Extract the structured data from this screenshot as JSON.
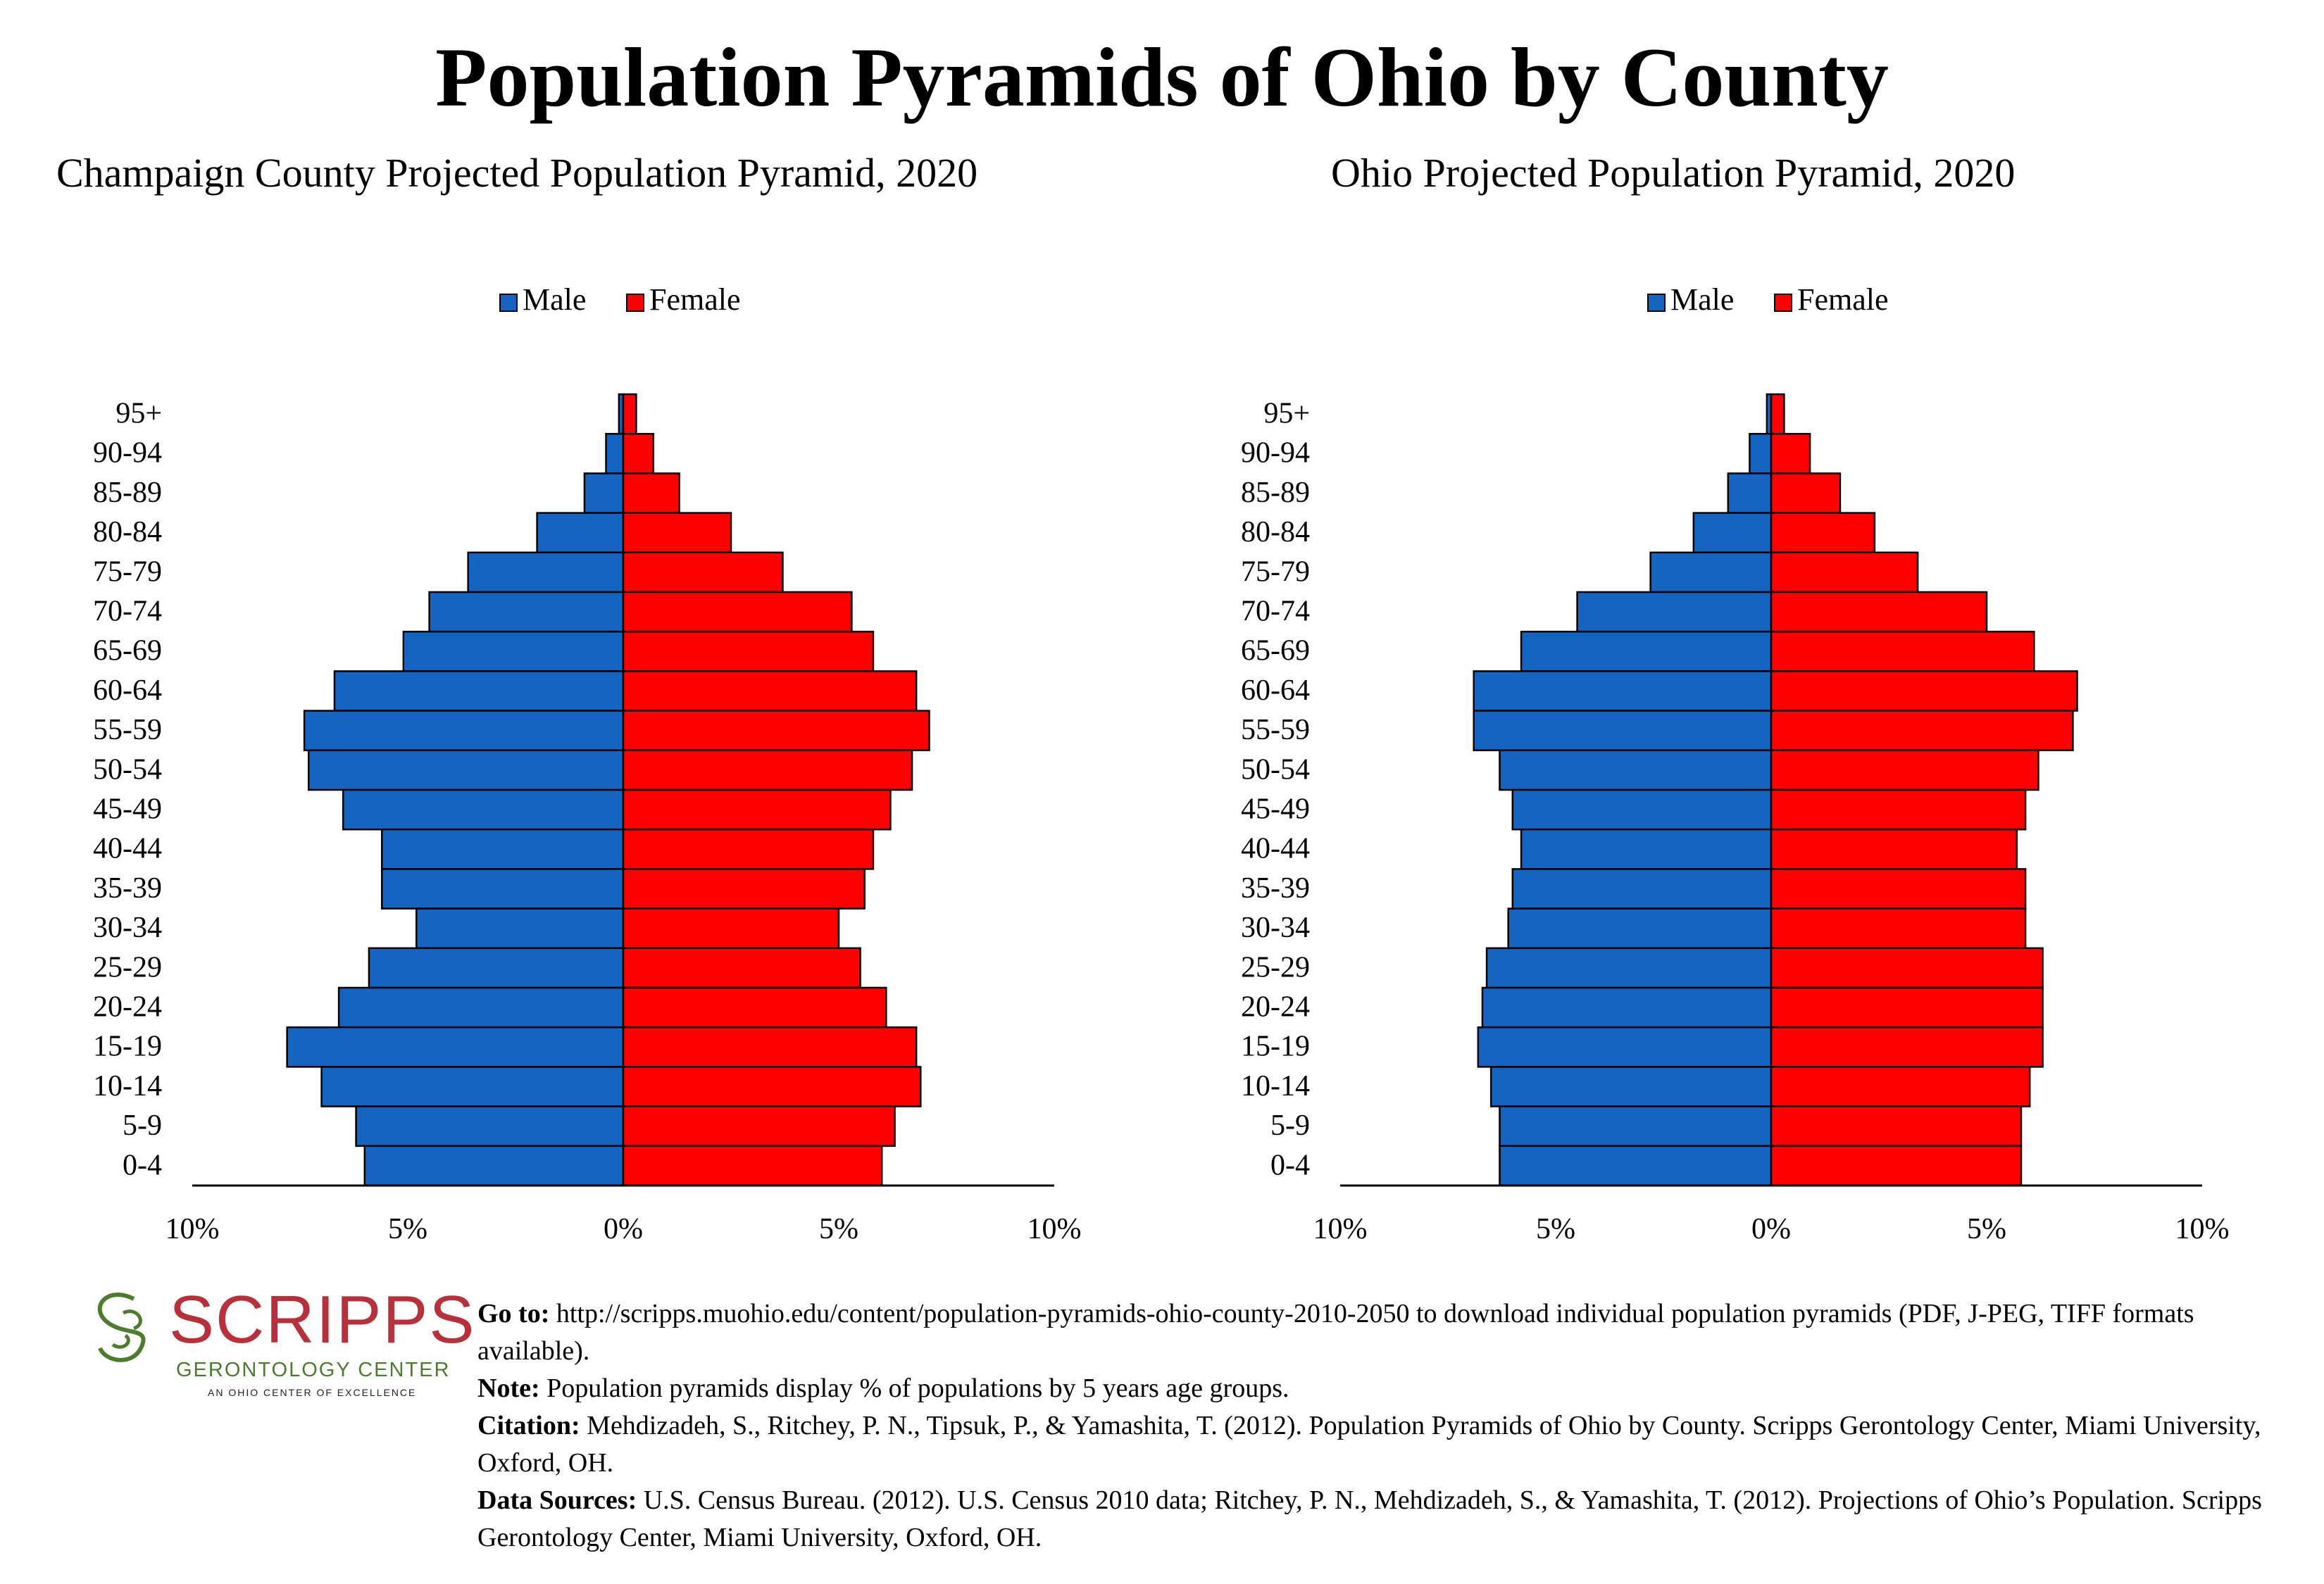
{
  "title": "Population Pyramids of Ohio by County",
  "legend": {
    "male": "Male",
    "female": "Female"
  },
  "colors": {
    "male": "#1565c0",
    "female": "#ff0000",
    "outline": "#000000"
  },
  "chart_data": [
    {
      "type": "bar",
      "orientation": "horizontal-pyramid",
      "title": "Champaign County Projected Population Pyramid, 2020",
      "legend_position": "top",
      "categories": [
        "95+",
        "90-94",
        "85-89",
        "80-84",
        "75-79",
        "70-74",
        "65-69",
        "60-64",
        "55-59",
        "50-54",
        "45-49",
        "40-44",
        "35-39",
        "30-34",
        "25-29",
        "20-24",
        "15-19",
        "10-14",
        "5-9",
        "0-4"
      ],
      "x_ticks": [
        "10%",
        "5%",
        "0%",
        "5%",
        "10%"
      ],
      "xlim": [
        -10,
        10
      ],
      "series": [
        {
          "name": "Male",
          "values": [
            0.1,
            0.4,
            0.9,
            2.0,
            3.6,
            4.5,
            5.1,
            6.7,
            7.4,
            7.3,
            6.5,
            5.6,
            5.6,
            4.8,
            5.9,
            6.6,
            7.8,
            7.0,
            6.2,
            6.0
          ]
        },
        {
          "name": "Female",
          "values": [
            0.3,
            0.7,
            1.3,
            2.5,
            3.7,
            5.3,
            5.8,
            6.8,
            7.1,
            6.7,
            6.2,
            5.8,
            5.6,
            5.0,
            5.5,
            6.1,
            6.8,
            6.9,
            6.3,
            6.0
          ]
        }
      ]
    },
    {
      "type": "bar",
      "orientation": "horizontal-pyramid",
      "title": "Ohio Projected Population Pyramid, 2020",
      "legend_position": "top",
      "categories": [
        "95+",
        "90-94",
        "85-89",
        "80-84",
        "75-79",
        "70-74",
        "65-69",
        "60-64",
        "55-59",
        "50-54",
        "45-49",
        "40-44",
        "35-39",
        "30-34",
        "25-29",
        "20-24",
        "15-19",
        "10-14",
        "5-9",
        "0-4"
      ],
      "x_ticks": [
        "10%",
        "5%",
        "0%",
        "5%",
        "10%"
      ],
      "xlim": [
        -10,
        10
      ],
      "series": [
        {
          "name": "Male",
          "values": [
            0.1,
            0.5,
            1.0,
            1.8,
            2.8,
            4.5,
            5.8,
            6.9,
            6.9,
            6.3,
            6.0,
            5.8,
            6.0,
            6.1,
            6.6,
            6.7,
            6.8,
            6.5,
            6.3,
            6.3
          ]
        },
        {
          "name": "Female",
          "values": [
            0.3,
            0.9,
            1.6,
            2.4,
            3.4,
            5.0,
            6.1,
            7.1,
            7.0,
            6.2,
            5.9,
            5.7,
            5.9,
            5.9,
            6.3,
            6.3,
            6.3,
            6.0,
            5.8,
            5.8
          ]
        }
      ]
    }
  ],
  "logo": {
    "word": "SCRIPPS",
    "subtitle": "GERONTOLOGY CENTER",
    "tagline": "AN OHIO CENTER OF EXCELLENCE"
  },
  "footer": {
    "goto_label": "Go to:",
    "goto_text": " http://scripps.muohio.edu/content/population-pyramids-ohio-county-2010-2050 to download individual population pyramids (PDF, J-PEG, TIFF formats available).",
    "note_label": "Note:",
    "note_text": " Population pyramids display % of populations by 5 years age groups.",
    "citation_label": "Citation:",
    "citation_text": " Mehdizadeh, S., Ritchey, P. N., Tipsuk, P., & Yamashita, T. (2012). Population Pyramids of Ohio by County. Scripps Gerontology Center, Miami University, Oxford, OH.",
    "sources_label": "Data Sources:",
    "sources_text": " U.S. Census Bureau. (2012). U.S. Census 2010 data; Ritchey, P. N., Mehdizadeh, S., & Yamashita, T. (2012). Projections of Ohio’s Population. Scripps Gerontology Center, Miami University, Oxford, OH."
  }
}
